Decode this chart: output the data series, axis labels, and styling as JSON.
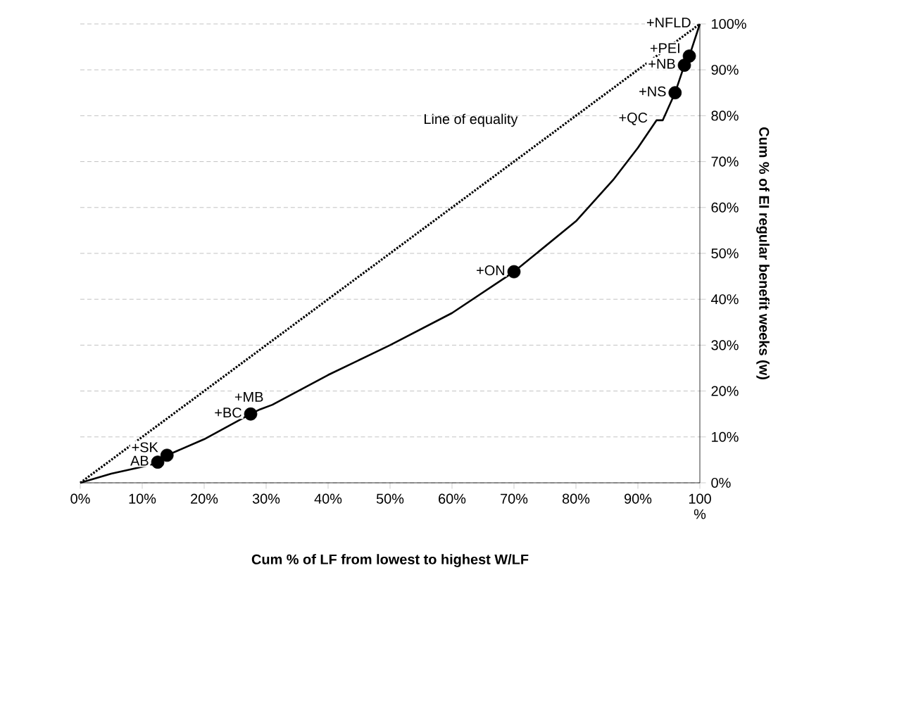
{
  "chart_data": {
    "type": "line",
    "xlabel": "Cum % of LF from lowest to highest W/LF",
    "ylabel": "Cum % of EI regular benefit weeks (w)",
    "xlim": [
      0,
      100
    ],
    "ylim": [
      0,
      100
    ],
    "xticks": [
      {
        "value": 0,
        "label": "0%"
      },
      {
        "value": 10,
        "label": "10%"
      },
      {
        "value": 20,
        "label": "20%"
      },
      {
        "value": 30,
        "label": "30%"
      },
      {
        "value": 40,
        "label": "40%"
      },
      {
        "value": 50,
        "label": "50%"
      },
      {
        "value": 60,
        "label": "60%"
      },
      {
        "value": 70,
        "label": "70%"
      },
      {
        "value": 80,
        "label": "80%"
      },
      {
        "value": 90,
        "label": "90%"
      },
      {
        "value": 100,
        "label": "100 %"
      }
    ],
    "yticks": [
      {
        "value": 0,
        "label": "0%"
      },
      {
        "value": 10,
        "label": "10%"
      },
      {
        "value": 20,
        "label": "20%"
      },
      {
        "value": 30,
        "label": "30%"
      },
      {
        "value": 40,
        "label": "40%"
      },
      {
        "value": 50,
        "label": "50%"
      },
      {
        "value": 60,
        "label": "60%"
      },
      {
        "value": 70,
        "label": "70%"
      },
      {
        "value": 80,
        "label": "80%"
      },
      {
        "value": 90,
        "label": "90%"
      },
      {
        "value": 100,
        "label": "100%"
      }
    ],
    "grid": "y",
    "series": [
      {
        "color": "#000000",
        "marker": "none",
        "line_style": "solid",
        "x": [
          0,
          5,
          10,
          11.5,
          12.5,
          14,
          20,
          27.5,
          29,
          31,
          40,
          50,
          60,
          70,
          80,
          86,
          90,
          93,
          94,
          96,
          97.5,
          98.3,
          100
        ],
        "values": [
          0,
          2,
          3.5,
          4,
          4.5,
          6,
          9.5,
          15,
          16,
          17,
          23.5,
          30,
          37,
          46,
          57,
          66,
          73,
          79,
          79,
          85,
          91,
          93,
          100
        ]
      },
      {
        "type": "scatter",
        "color": "#000000",
        "marker": "circle",
        "x": [
          12.5,
          14,
          27.5,
          70,
          96,
          97.5,
          98.3
        ],
        "values": [
          4.5,
          6,
          15,
          46,
          85,
          91,
          93
        ]
      },
      {
        "type": "line",
        "color": "#000000",
        "marker": "none",
        "line_style": "dotted",
        "x": [
          0,
          100
        ],
        "values": [
          0,
          100
        ]
      }
    ],
    "annotations": [
      {
        "text": "+NFLD",
        "x": 100,
        "y": 100
      },
      {
        "text": "+PEI",
        "x": 98.3,
        "y": 93
      },
      {
        "text": "+NB",
        "x": 97.5,
        "y": 91
      },
      {
        "text": "+NS",
        "x": 96,
        "y": 85
      },
      {
        "text": "+QC",
        "x": 93,
        "y": 79
      },
      {
        "text": "+ON",
        "x": 70,
        "y": 46
      },
      {
        "text": "+MB",
        "x": 31,
        "y": 17
      },
      {
        "text": "+BC",
        "x": 27.5,
        "y": 15
      },
      {
        "text": "+SK",
        "x": 14,
        "y": 6
      },
      {
        "text": "AB",
        "x": 12.5,
        "y": 4.5
      },
      "Line of equality"
    ]
  }
}
